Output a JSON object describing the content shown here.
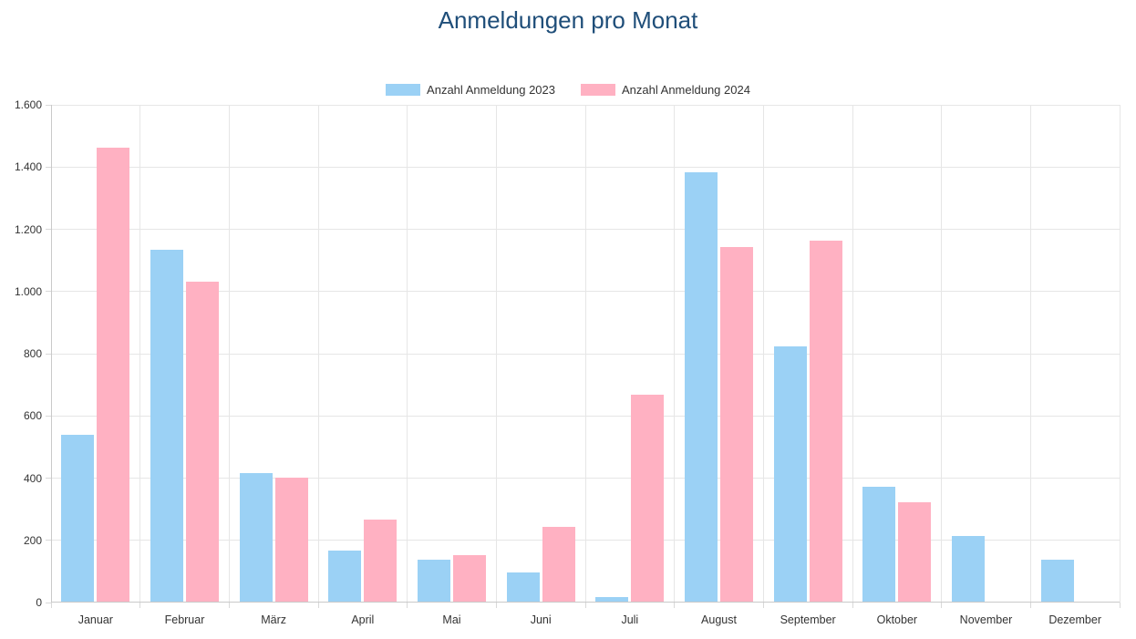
{
  "title": "Anmeldungen pro Monat",
  "colors": {
    "title": "#1f4e79",
    "series_2023": "#9bd1f5",
    "series_2024": "#ffb1c2",
    "gridline": "#e6e6e6",
    "axis_line": "#c9c9c9",
    "label_text": "#333333"
  },
  "chart_data": {
    "type": "bar",
    "title": "Anmeldungen pro Monat",
    "categories": [
      "Januar",
      "Februar",
      "März",
      "April",
      "Mai",
      "Juni",
      "Juli",
      "August",
      "September",
      "Oktober",
      "November",
      "Dezember"
    ],
    "series": [
      {
        "name": "Anzahl Anmeldung 2023",
        "color": "#9bd1f5",
        "values": [
          535,
          1130,
          413,
          165,
          135,
          95,
          15,
          1380,
          820,
          370,
          210,
          135
        ]
      },
      {
        "name": "Anzahl Anmeldung 2024",
        "color": "#ffb1c2",
        "values": [
          1460,
          1030,
          400,
          265,
          150,
          240,
          665,
          1140,
          1160,
          320,
          0,
          0
        ]
      }
    ],
    "xlabel": "",
    "ylabel": "",
    "ylim": [
      0,
      1600
    ],
    "ytick_step": 200,
    "ytick_labels": [
      "0",
      "200",
      "400",
      "600",
      "800",
      "1.000",
      "1.200",
      "1.400",
      "1.600"
    ],
    "grid": true,
    "legend_position": "top"
  }
}
